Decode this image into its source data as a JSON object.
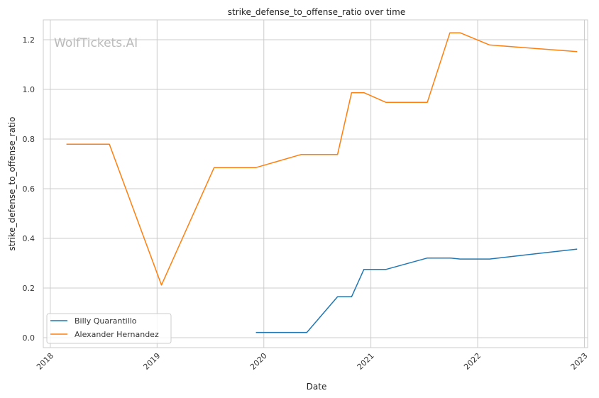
{
  "chart_data": {
    "type": "line",
    "title": "strike_defense_to_offense_ratio over time",
    "xlabel": "Date",
    "ylabel": "strike_defense_to_offense_ratio",
    "watermark": "WolfTickets.AI",
    "x_ticks": [
      "2018",
      "2019",
      "2020",
      "2021",
      "2022",
      "2023"
    ],
    "y_ticks": [
      "0.0",
      "0.2",
      "0.4",
      "0.6",
      "0.8",
      "1.0",
      "1.2"
    ],
    "xlim": [
      "2017-12-08",
      "2023-01-12"
    ],
    "ylim": [
      -0.04,
      1.28
    ],
    "grid": true,
    "legend_position": "lower-left",
    "series": [
      {
        "name": "Billy Quarantillo",
        "color": "#1f77b4",
        "x": [
          "2019-12-05",
          "2020-05-27",
          "2020-09-09",
          "2020-10-27",
          "2020-12-08",
          "2021-02-21",
          "2021-07-13",
          "2021-09-28",
          "2021-11-02",
          "2022-02-11",
          "2022-12-07"
        ],
        "y": [
          0.021,
          0.021,
          0.165,
          0.165,
          0.275,
          0.275,
          0.321,
          0.321,
          0.317,
          0.317,
          0.357
        ]
      },
      {
        "name": "Alexander Hernandez",
        "color": "#ff7f0e",
        "x": [
          "2018-02-25",
          "2018-07-22",
          "2019-01-16",
          "2019-07-15",
          "2019-12-05",
          "2020-05-08",
          "2020-09-09",
          "2020-10-27",
          "2020-12-08",
          "2021-02-21",
          "2021-07-13",
          "2021-09-28",
          "2021-11-02",
          "2022-02-11",
          "2022-12-07"
        ],
        "y": [
          0.779,
          0.779,
          0.212,
          0.685,
          0.685,
          0.738,
          0.738,
          0.987,
          0.987,
          0.948,
          0.948,
          1.228,
          1.228,
          1.179,
          1.152
        ]
      }
    ]
  }
}
